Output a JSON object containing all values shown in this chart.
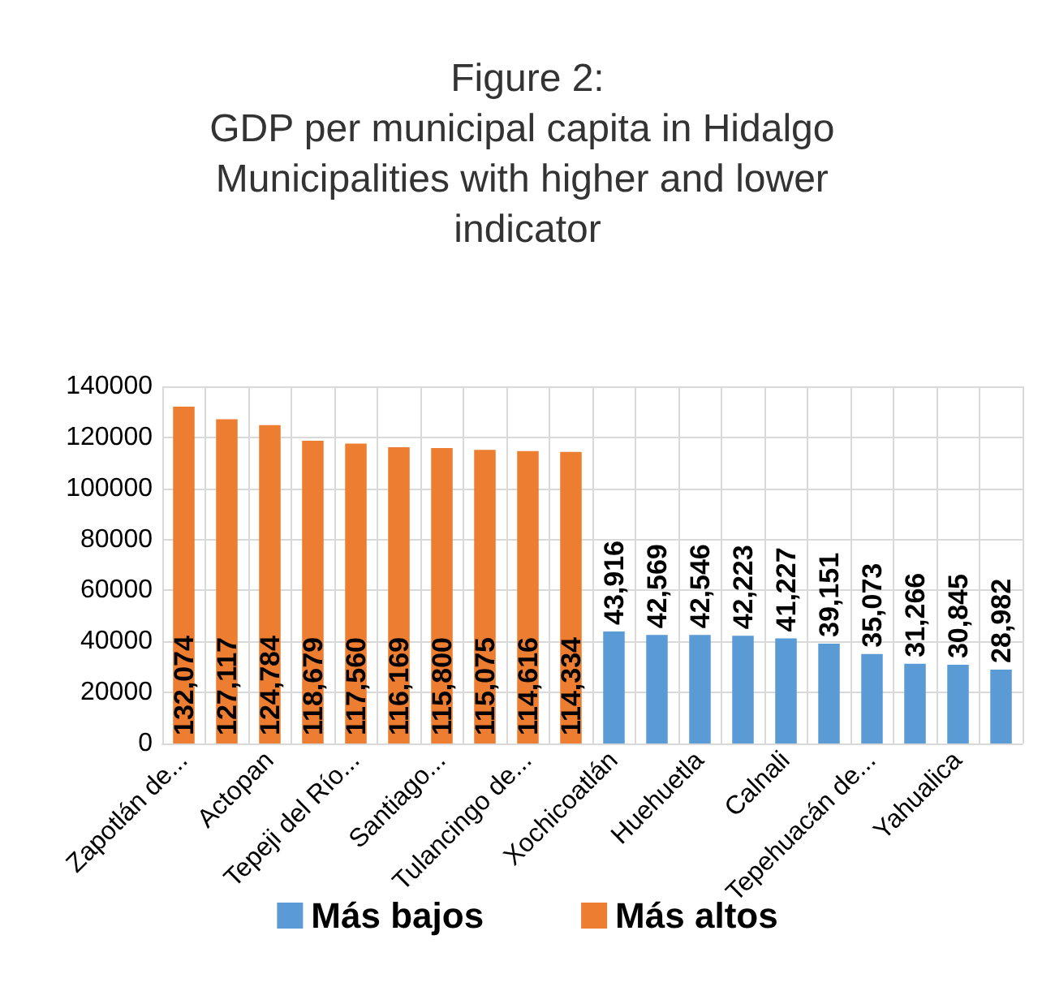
{
  "chart_data": {
    "type": "bar",
    "title": "Figure 2:\nGDP per municipal capita in Hidalgo Municipalities with higher and lower indicator",
    "categories": [
      "Zapotlán de...",
      null,
      "Actopan",
      null,
      "Tepeji del Río...",
      null,
      "Santiago...",
      null,
      "Tulancingo de...",
      null,
      "Xochicoatlán",
      null,
      "Huehuetla",
      null,
      "Calnali",
      null,
      "Tepehuacán de...",
      null,
      "Yahualica",
      null
    ],
    "series": [
      {
        "name": "Más bajos",
        "color": "#5b9bd5",
        "values": [
          null,
          null,
          null,
          null,
          null,
          null,
          null,
          null,
          null,
          null,
          43916,
          42569,
          42546,
          42223,
          41227,
          39151,
          35073,
          31266,
          30845,
          28982
        ],
        "value_labels": [
          null,
          null,
          null,
          null,
          null,
          null,
          null,
          null,
          null,
          null,
          "43,916",
          "42,569",
          "42,546",
          "42,223",
          "41,227",
          "39,151",
          "35,073",
          "31,266",
          "30,845",
          "28,982"
        ]
      },
      {
        "name": "Más altos",
        "color": "#ed7d31",
        "values": [
          132074,
          127117,
          124784,
          118679,
          117560,
          116169,
          115800,
          115075,
          114616,
          114334,
          null,
          null,
          null,
          null,
          null,
          null,
          null,
          null,
          null,
          null
        ],
        "value_labels": [
          "132,074",
          "127,117",
          "124,784",
          "118,679",
          "117,560",
          "116,169",
          "115,800",
          "115,075",
          "114,616",
          "114,334",
          null,
          null,
          null,
          null,
          null,
          null,
          null,
          null,
          null,
          null
        ]
      }
    ],
    "ylim": [
      0,
      140000
    ],
    "yticks": [
      0,
      20000,
      40000,
      60000,
      80000,
      100000,
      120000,
      140000
    ],
    "grid": true,
    "legend": "bottom"
  }
}
